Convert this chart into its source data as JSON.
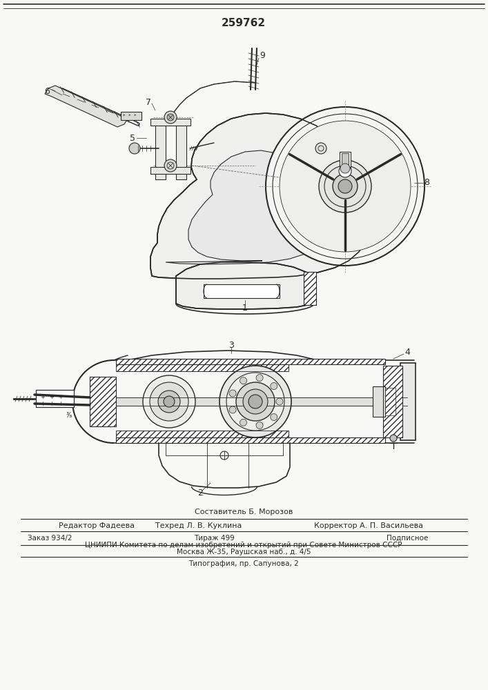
{
  "patent_number": "259762",
  "background_color": "#f8f8f6",
  "line_color": "#2a2a2a",
  "text_color": "#2a2a2a",
  "footer": {
    "compiler": "Составитель Б. Морозов",
    "editor": "Редактор Фадеева",
    "techred": "Техред Л. В. Куклина",
    "corrector": "Корректор А. П. Васильева",
    "order": "Заказ 934/2",
    "circulation": "Тираж 499",
    "subscription": "Подписное",
    "organization": "ЦНИИПИ Комитета по делам изобретений и открытий при Совете Министров СССР",
    "address": "Москва Ж-35, Раушская наб., д. 4/5",
    "printing": "Типография, пр. Сапунова, 2"
  }
}
